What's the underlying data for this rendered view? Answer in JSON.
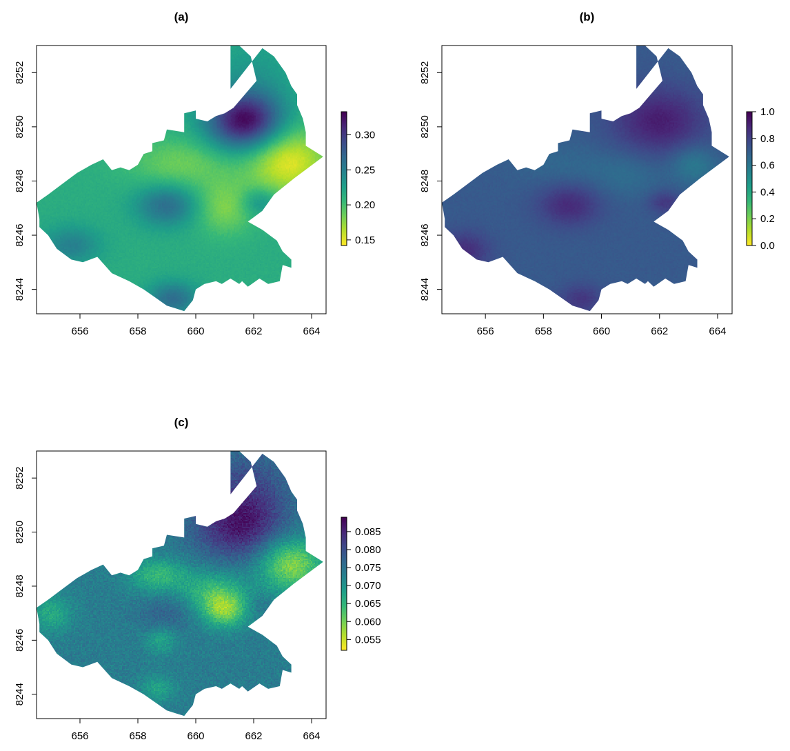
{
  "chart_data": [
    {
      "type": "heatmap",
      "title": "(a)",
      "xticks": [
        "656",
        "658",
        "660",
        "662",
        "664"
      ],
      "yticks": [
        "8244",
        "8246",
        "8248",
        "8250",
        "8252"
      ],
      "xlim": [
        654.5,
        664.5
      ],
      "ylim": [
        8243.1,
        8253
      ],
      "colorbar": {
        "ticks": [
          "0.15",
          "0.20",
          "0.25",
          "0.30"
        ],
        "range": [
          0.142,
          0.333
        ],
        "reversed_viridis": true
      },
      "field": {
        "base": 0.215,
        "noise": 0.004,
        "blobs": [
          {
            "x": 661.7,
            "y": 8250.2,
            "amp": 0.115,
            "sx": 0.9,
            "sy": 0.75
          },
          {
            "x": 659.0,
            "y": 8247.1,
            "amp": 0.05,
            "sx": 0.75,
            "sy": 0.55
          },
          {
            "x": 662.2,
            "y": 8247.2,
            "amp": 0.03,
            "sx": 0.45,
            "sy": 0.35
          },
          {
            "x": 659.2,
            "y": 8243.6,
            "amp": 0.05,
            "sx": 0.6,
            "sy": 0.45
          },
          {
            "x": 655.7,
            "y": 8245.6,
            "amp": 0.035,
            "sx": 0.7,
            "sy": 0.5
          },
          {
            "x": 663.2,
            "y": 8248.7,
            "amp": -0.065,
            "sx": 1.0,
            "sy": 0.9
          },
          {
            "x": 661.0,
            "y": 8247.0,
            "amp": -0.035,
            "sx": 0.7,
            "sy": 0.7
          },
          {
            "x": 659.5,
            "y": 8248.6,
            "amp": -0.03,
            "sx": 1.3,
            "sy": 0.7
          },
          {
            "x": 662.0,
            "y": 8252.0,
            "amp": 0.015,
            "sx": 1.0,
            "sy": 1.0
          }
        ]
      }
    },
    {
      "type": "heatmap",
      "title": "(b)",
      "xticks": [
        "656",
        "658",
        "660",
        "662",
        "664"
      ],
      "yticks": [
        "8244",
        "8246",
        "8248",
        "8250",
        "8252"
      ],
      "xlim": [
        654.5,
        664.5
      ],
      "ylim": [
        8243.1,
        8253
      ],
      "colorbar": {
        "ticks": [
          "0.0",
          "0.2",
          "0.4",
          "0.6",
          "0.8",
          "1.0"
        ],
        "range": [
          0,
          1
        ],
        "reversed_viridis": true
      },
      "field": {
        "base": 0.72,
        "noise": 0.018,
        "blobs": [
          {
            "x": 662.0,
            "y": 8250.2,
            "amp": 0.2,
            "sx": 1.1,
            "sy": 0.85
          },
          {
            "x": 658.9,
            "y": 8247.1,
            "amp": 0.16,
            "sx": 0.75,
            "sy": 0.55
          },
          {
            "x": 662.2,
            "y": 8247.2,
            "amp": 0.12,
            "sx": 0.4,
            "sy": 0.3
          },
          {
            "x": 659.3,
            "y": 8243.6,
            "amp": 0.12,
            "sx": 0.55,
            "sy": 0.4
          },
          {
            "x": 655.3,
            "y": 8245.4,
            "amp": 0.15,
            "sx": 0.6,
            "sy": 0.5
          },
          {
            "x": 663.2,
            "y": 8248.6,
            "amp": -0.13,
            "sx": 0.55,
            "sy": 0.5
          },
          {
            "x": 660.9,
            "y": 8248.2,
            "amp": -0.07,
            "sx": 0.9,
            "sy": 0.6
          },
          {
            "x": 658.6,
            "y": 8248.6,
            "amp": -0.05,
            "sx": 1.2,
            "sy": 0.6
          }
        ]
      }
    },
    {
      "type": "heatmap",
      "title": "(c)",
      "xticks": [
        "656",
        "658",
        "660",
        "662",
        "664"
      ],
      "yticks": [
        "8244",
        "8246",
        "8248",
        "8250",
        "8252"
      ],
      "xlim": [
        654.5,
        664.5
      ],
      "ylim": [
        8243.1,
        8253
      ],
      "colorbar": {
        "ticks": [
          "0.055",
          "0.060",
          "0.065",
          "0.070",
          "0.075",
          "0.080",
          "0.085"
        ],
        "range": [
          0.052,
          0.089
        ],
        "reversed_viridis": true
      },
      "field": {
        "base": 0.0735,
        "noise": 0.0028,
        "blobs": [
          {
            "x": 661.5,
            "y": 8250.2,
            "amp": 0.012,
            "sx": 1.1,
            "sy": 0.9
          },
          {
            "x": 661.8,
            "y": 8251.8,
            "amp": 0.006,
            "sx": 1.0,
            "sy": 1.0
          },
          {
            "x": 659.0,
            "y": 8247.0,
            "amp": 0.004,
            "sx": 0.7,
            "sy": 0.5
          },
          {
            "x": 663.3,
            "y": 8248.8,
            "amp": -0.015,
            "sx": 0.8,
            "sy": 0.7
          },
          {
            "x": 661.0,
            "y": 8247.1,
            "amp": -0.013,
            "sx": 0.55,
            "sy": 0.45
          },
          {
            "x": 660.6,
            "y": 8247.8,
            "amp": -0.009,
            "sx": 0.8,
            "sy": 0.55
          },
          {
            "x": 658.7,
            "y": 8248.4,
            "amp": -0.009,
            "sx": 0.7,
            "sy": 0.45
          },
          {
            "x": 655.0,
            "y": 8247.0,
            "amp": -0.007,
            "sx": 0.5,
            "sy": 0.5
          },
          {
            "x": 658.8,
            "y": 8246.0,
            "amp": -0.006,
            "sx": 0.4,
            "sy": 0.35
          },
          {
            "x": 658.7,
            "y": 8244.2,
            "amp": -0.006,
            "sx": 0.4,
            "sy": 0.35
          },
          {
            "x": 662.2,
            "y": 8247.3,
            "amp": 0.002,
            "sx": 0.4,
            "sy": 0.3
          }
        ]
      }
    }
  ],
  "region_outline": [
    [
      663.8,
      8249.3
    ],
    [
      664.4,
      8248.9
    ],
    [
      663.4,
      8248.1
    ],
    [
      662.7,
      8247.5
    ],
    [
      662.3,
      8246.9
    ],
    [
      661.8,
      8246.5
    ],
    [
      662.3,
      8246.2
    ],
    [
      662.8,
      8245.8
    ],
    [
      663.0,
      8245.4
    ],
    [
      663.3,
      8245.1
    ],
    [
      663.3,
      8244.8
    ],
    [
      663.0,
      8244.9
    ],
    [
      662.9,
      8244.3
    ],
    [
      662.5,
      8244.2
    ],
    [
      662.2,
      8244.4
    ],
    [
      661.8,
      8244.1
    ],
    [
      661.6,
      8244.3
    ],
    [
      661.5,
      8244.2
    ],
    [
      661.2,
      8244.4
    ],
    [
      660.9,
      8244.2
    ],
    [
      660.7,
      8244.3
    ],
    [
      660.3,
      8244.2
    ],
    [
      660.0,
      8244.0
    ],
    [
      659.9,
      8243.6
    ],
    [
      659.6,
      8243.2
    ],
    [
      659.3,
      8243.3
    ],
    [
      659.0,
      8243.4
    ],
    [
      658.6,
      8243.7
    ],
    [
      658.2,
      8244.0
    ],
    [
      657.7,
      8244.3
    ],
    [
      657.1,
      8244.6
    ],
    [
      656.6,
      8245.2
    ],
    [
      656.1,
      8245.0
    ],
    [
      655.7,
      8245.1
    ],
    [
      655.2,
      8245.5
    ],
    [
      654.9,
      8246.0
    ],
    [
      654.6,
      8246.3
    ],
    [
      654.6,
      8246.6
    ],
    [
      654.5,
      8247.2
    ],
    [
      654.9,
      8247.5
    ],
    [
      655.4,
      8247.9
    ],
    [
      655.9,
      8248.3
    ],
    [
      656.4,
      8248.6
    ],
    [
      656.8,
      8248.8
    ],
    [
      657.1,
      8248.4
    ],
    [
      657.4,
      8248.5
    ],
    [
      657.7,
      8248.4
    ],
    [
      658.0,
      8248.6
    ],
    [
      658.2,
      8249.0
    ],
    [
      658.5,
      8249.1
    ],
    [
      658.5,
      8249.4
    ],
    [
      658.9,
      8249.5
    ],
    [
      659.0,
      8249.9
    ],
    [
      659.6,
      8249.8
    ],
    [
      659.6,
      8250.5
    ],
    [
      660.0,
      8250.6
    ],
    [
      660.0,
      8250.3
    ],
    [
      660.4,
      8250.2
    ],
    [
      660.7,
      8250.4
    ],
    [
      661.0,
      8250.5
    ],
    [
      661.3,
      8250.7
    ],
    [
      661.7,
      8251.2
    ],
    [
      662.1,
      8251.7
    ],
    [
      661.9,
      8252.6
    ],
    [
      661.5,
      8253.0
    ],
    [
      661.2,
      8253.0
    ],
    [
      661.2,
      8251.4
    ],
    [
      662.3,
      8252.9
    ],
    [
      662.7,
      8252.6
    ],
    [
      663.1,
      8252.0
    ],
    [
      663.3,
      8251.5
    ],
    [
      663.5,
      8251.2
    ],
    [
      663.5,
      8250.8
    ],
    [
      663.7,
      8250.3
    ],
    [
      663.8,
      8249.8
    ]
  ]
}
